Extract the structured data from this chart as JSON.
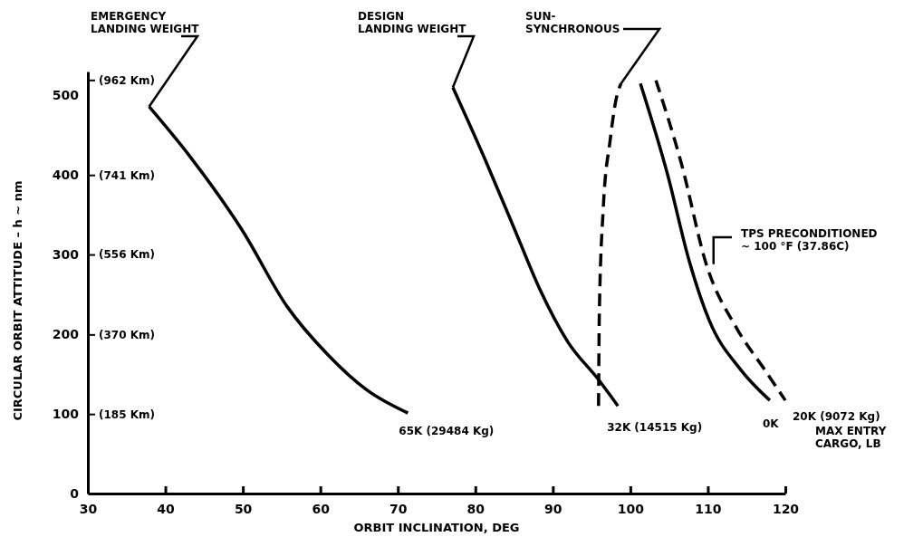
{
  "chart_data": {
    "type": "line",
    "xlabel": "ORBIT INCLINATION, DEG",
    "ylabel": "CIRCULAR ORBIT ATTITUDE – h ~ nm",
    "xlim": [
      30,
      120
    ],
    "xticks": [
      30,
      40,
      50,
      60,
      70,
      80,
      90,
      100,
      110,
      120
    ],
    "ylim": [
      0,
      530
    ],
    "yticks": [
      0,
      100,
      200,
      300,
      400,
      500
    ],
    "y2lim": [
      0,
      981.6
    ],
    "y2ticks": [
      {
        "value": 185,
        "label": "(185 Km)"
      },
      {
        "value": 370,
        "label": "(370 Km)"
      },
      {
        "value": 556,
        "label": "(556 Km)"
      },
      {
        "value": 741,
        "label": "(741 Km)"
      },
      {
        "value": 962,
        "label": "(962 Km)"
      }
    ],
    "grid": false,
    "series": [
      {
        "name": "65K (29484 Kg)",
        "color": "#000000",
        "line_style": "solid",
        "x": [
          37.9,
          43.2,
          49.9,
          55.7,
          61.0,
          66.0,
          71.3
        ],
        "values": [
          486,
          423,
          331,
          235,
          174,
          130,
          101
        ]
      },
      {
        "name": "32K (14515 Kg)",
        "color": "#000000",
        "line_style": "solid",
        "x": [
          77.1,
          81.5,
          85.1,
          88.3,
          91.9,
          95.9,
          98.4
        ],
        "values": [
          510,
          414,
          331,
          257,
          191,
          143,
          110
        ]
      },
      {
        "color": "#000000",
        "line_style": "dashed",
        "x": [
          95.9,
          96.0,
          96.5,
          97.4,
          98.1,
          98.8
        ],
        "values": [
          110,
          226,
          357,
          444,
          492,
          515
        ]
      },
      {
        "name": "0K",
        "color": "#000000",
        "line_style": "solid",
        "x": [
          101.3,
          104.8,
          107.6,
          110.2,
          114.2,
          118.0
        ],
        "values": [
          515,
          401,
          292,
          217,
          156,
          117
        ]
      },
      {
        "name": "20K (9072 Kg)",
        "color": "#000000",
        "line_style": "dashed",
        "x": [
          103.3,
          106.6,
          109.8,
          113.7,
          117.3,
          120.0
        ],
        "values": [
          519,
          414,
          288,
          208,
          156,
          117
        ]
      }
    ],
    "annotations": [
      {
        "text": "EMERGENCY\nLANDING WEIGHT",
        "x": 37.9,
        "y": 486
      },
      {
        "text": "DESIGN\nLANDING WEIGHT",
        "x": 77.1,
        "y": 510
      },
      {
        "text": "SUN-\nSYNCHRONOUS",
        "x": 98.8,
        "y": 515
      },
      {
        "text": "TPS PRECONDITIONED\n~ 100 °F  (37.86C)",
        "x": 109.8,
        "y": 288
      },
      "MAX ENTRY\nCARGO, LB"
    ]
  }
}
